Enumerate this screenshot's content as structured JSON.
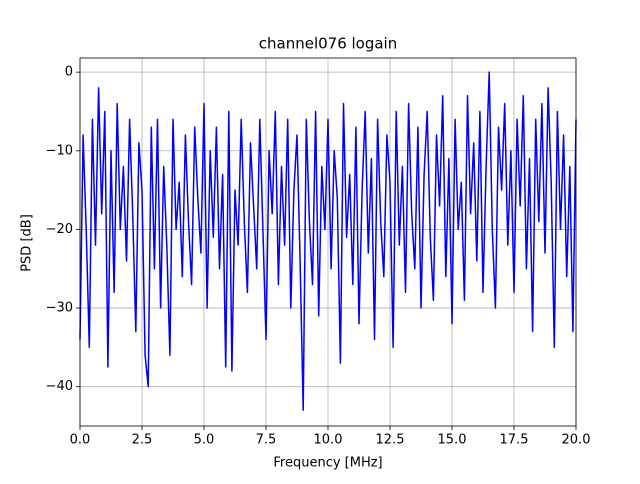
{
  "chart_data": {
    "type": "line",
    "title": "channel076 logain",
    "xlabel": "Frequency [MHz]",
    "ylabel": "PSD [dB]",
    "grid": true,
    "xlim": [
      0,
      20
    ],
    "ylim": [
      -45,
      1.8
    ],
    "xticks": [
      {
        "value": 0,
        "label": "0.0"
      },
      2.5,
      {
        "value": 5,
        "label": "5.0"
      },
      7.5,
      {
        "value": 10,
        "label": "10.0"
      },
      12.5,
      {
        "value": 15,
        "label": "15.0"
      },
      17.5,
      {
        "value": 20,
        "label": "20.0"
      }
    ],
    "yticks": [
      0,
      {
        "value": -10,
        "label": "−10"
      },
      {
        "value": -20,
        "label": "−20"
      },
      {
        "value": -30,
        "label": "−30"
      },
      {
        "value": -40,
        "label": "−40"
      }
    ],
    "x": [
      0,
      0.125,
      0.25,
      0.375,
      0.5,
      0.625,
      0.75,
      0.875,
      1,
      1.125,
      1.25,
      1.375,
      1.5,
      1.625,
      1.75,
      1.875,
      2,
      2.125,
      2.25,
      2.375,
      2.5,
      2.625,
      2.75,
      2.875,
      3,
      3.125,
      3.25,
      3.375,
      3.5,
      3.625,
      3.75,
      3.875,
      4,
      4.125,
      4.25,
      4.375,
      4.5,
      4.625,
      4.75,
      4.875,
      5,
      5.125,
      5.25,
      5.375,
      5.5,
      5.625,
      5.75,
      5.875,
      6,
      6.125,
      6.25,
      6.375,
      6.5,
      6.625,
      6.75,
      6.875,
      7,
      7.125,
      7.25,
      7.375,
      7.5,
      7.625,
      7.75,
      7.875,
      8,
      8.125,
      8.25,
      8.375,
      8.5,
      8.625,
      8.75,
      8.875,
      9,
      9.125,
      9.25,
      9.375,
      9.5,
      9.625,
      9.75,
      9.875,
      10,
      10.125,
      10.25,
      10.375,
      10.5,
      10.625,
      10.75,
      10.875,
      11,
      11.125,
      11.25,
      11.375,
      11.5,
      11.625,
      11.75,
      11.875,
      12,
      12.125,
      12.25,
      12.375,
      12.5,
      12.625,
      12.75,
      12.875,
      13,
      13.125,
      13.25,
      13.375,
      13.5,
      13.625,
      13.75,
      13.875,
      14,
      14.125,
      14.25,
      14.375,
      14.5,
      14.625,
      14.75,
      14.875,
      15,
      15.125,
      15.25,
      15.375,
      15.5,
      15.625,
      15.75,
      15.875,
      16,
      16.125,
      16.25,
      16.375,
      16.5,
      16.625,
      16.75,
      16.875,
      17,
      17.125,
      17.25,
      17.375,
      17.5,
      17.625,
      17.75,
      17.875,
      18,
      18.125,
      18.25,
      18.375,
      18.5,
      18.625,
      18.75,
      18.875,
      19,
      19.125,
      19.25,
      19.375,
      19.5,
      19.625,
      19.75,
      19.875,
      20
    ],
    "series": [
      {
        "color": "#0000ff",
        "values": [
          -34,
          -8,
          -20,
          -35,
          -6,
          -22,
          -2,
          -18,
          -5,
          -37.5,
          -10,
          -28,
          -4,
          -20,
          -12,
          -24,
          -6,
          -18,
          -33,
          -9,
          -15,
          -36,
          -40,
          -7,
          -25,
          -6,
          -30,
          -12,
          -22,
          -36,
          -6,
          -20,
          -14,
          -26,
          -8,
          -19,
          -27,
          -7,
          -16,
          -23,
          -4,
          -30,
          -10,
          -21,
          -7,
          -25,
          -13,
          -37.5,
          -5,
          -38,
          -15,
          -22,
          -6,
          -19,
          -28,
          -9,
          -17,
          -25,
          -6,
          -20,
          -34,
          -10,
          -18,
          -5,
          -27,
          -12,
          -22,
          -6,
          -30,
          -15,
          -8,
          -24,
          -43,
          -6,
          -19,
          -27,
          -5,
          -31,
          -12,
          -20,
          -6,
          -25,
          -10,
          -16,
          -37,
          -4,
          -21,
          -13,
          -27,
          -7,
          -32,
          -15,
          -5,
          -23,
          -11,
          -34,
          -6,
          -19,
          -26,
          -8,
          -14,
          -35,
          -5,
          -22,
          -12,
          -28,
          -4,
          -18,
          -25,
          -7,
          -30,
          -13,
          -5,
          -21,
          -29,
          -8,
          -17,
          -3,
          -26,
          -11,
          -32,
          -6,
          -20,
          -14,
          -29,
          -3,
          -18,
          -9,
          -24,
          -5,
          -28,
          -12,
          0,
          -20,
          -30,
          -7,
          -15,
          -4,
          -22,
          -10,
          -28,
          -6,
          -17,
          -3,
          -25,
          -11,
          -33,
          -6,
          -19,
          -4,
          -23,
          -2,
          -14,
          -35,
          -5,
          -20,
          -8,
          -26,
          -12,
          -33,
          -6
        ]
      }
    ]
  }
}
